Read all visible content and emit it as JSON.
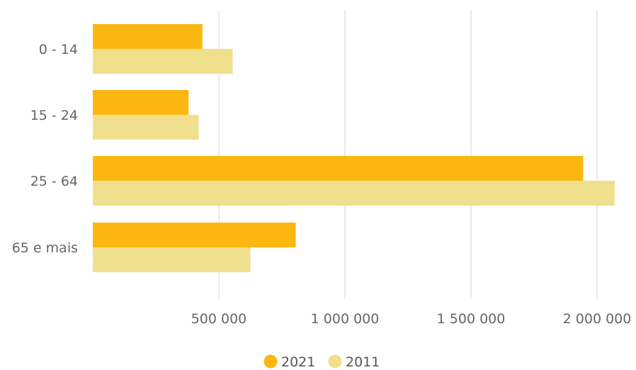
{
  "chart_data": {
    "type": "bar",
    "orientation": "horizontal",
    "categories": [
      "0 - 14",
      "15 - 24",
      "25 - 64",
      "65 e mais"
    ],
    "series": [
      {
        "name": "2021",
        "color": "#FCB711",
        "values": [
          435000,
          380000,
          1945000,
          805000
        ]
      },
      {
        "name": "2011",
        "color": "#F0E08E",
        "values": [
          555000,
          420000,
          2070000,
          625000
        ]
      }
    ],
    "x_ticks": [
      500000,
      1000000,
      1500000,
      2000000
    ],
    "x_tick_labels": [
      "500 000",
      "1 000 000",
      "1 500 000",
      "2 000 000"
    ],
    "xlim": [
      0,
      2100000
    ],
    "grid": "vertical",
    "legend_position": "bottom",
    "title": "",
    "xlabel": "",
    "ylabel": ""
  }
}
